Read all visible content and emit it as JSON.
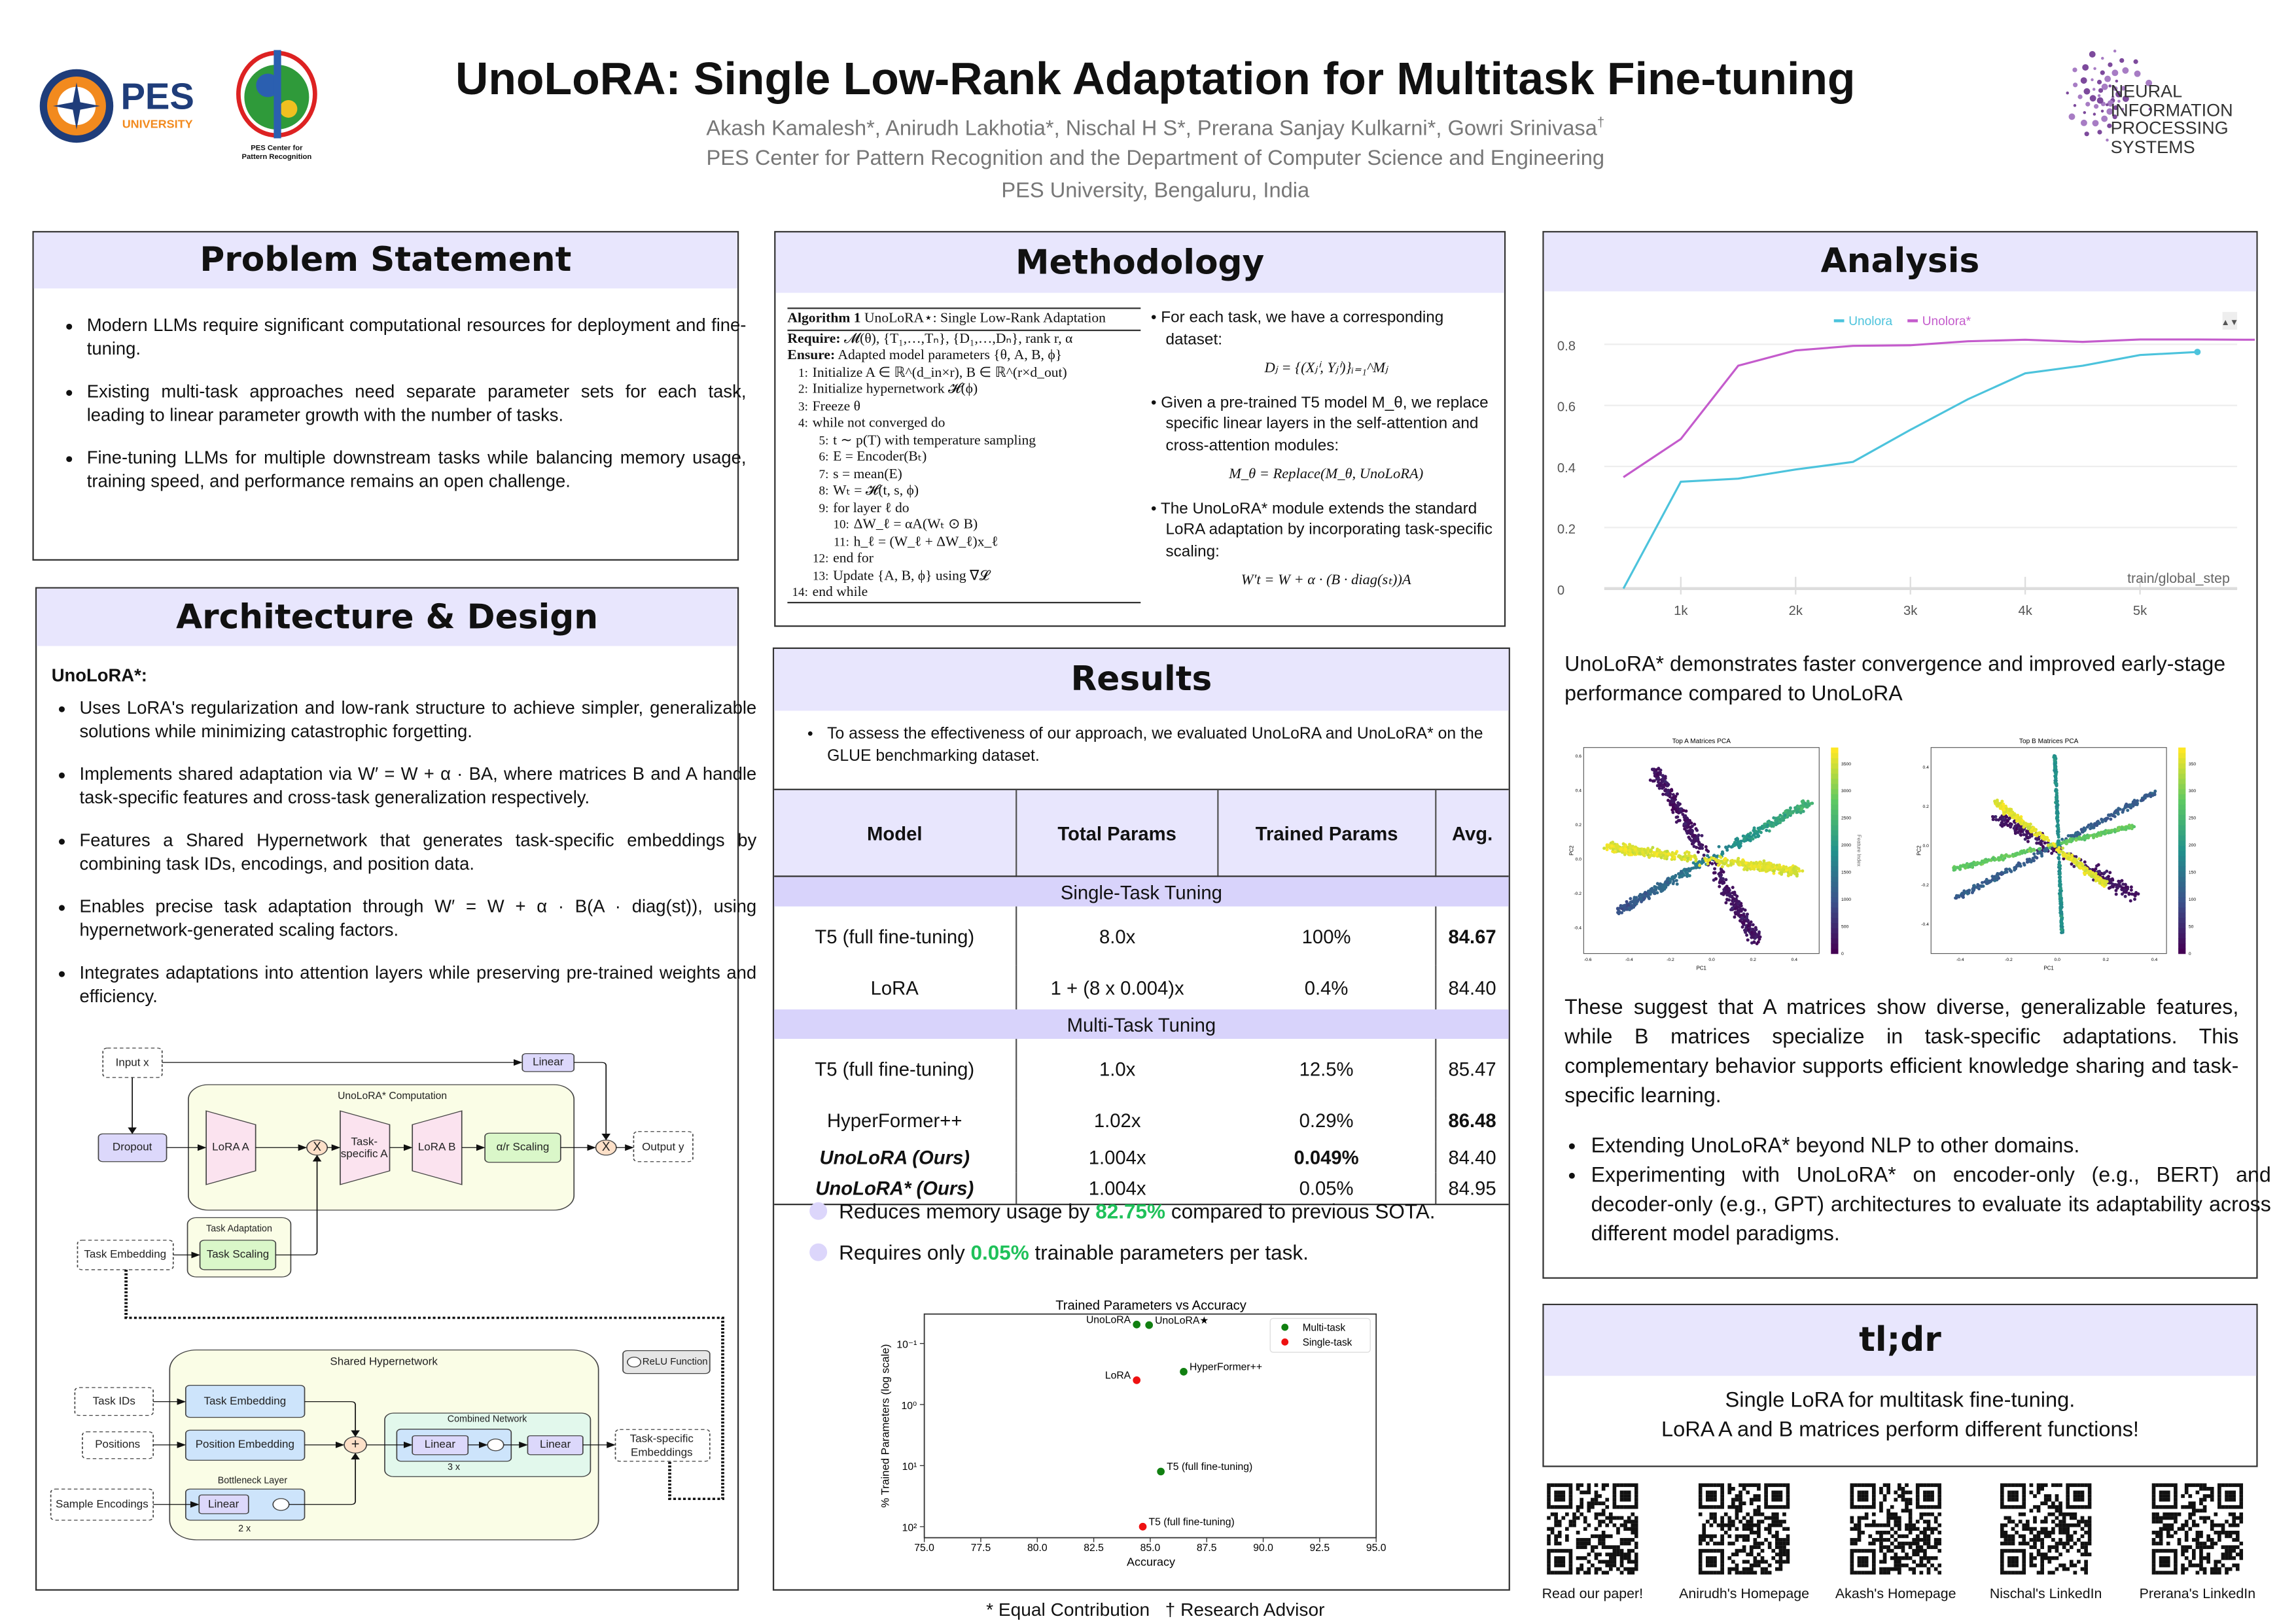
{
  "header": {
    "title": "UnoLoRA: Single Low-Rank Adaptation for Multitask Fine-tuning",
    "authors": "Akash Kamalesh*, Anirudh Lakhotia*, Nischal H S*, Prerana Sanjay Kulkarni*, Gowri Srinivasa",
    "advisor_mark": "†",
    "affiliation": "PES Center for Pattern Recognition and the Department of Computer Science and Engineering",
    "location": "PES University, Bengaluru, India",
    "logo_pes": "PES",
    "logo_pes_sub": "UNIVERSITY",
    "logo_cpr": "PES Center for Pattern Recognition",
    "logo_neurips": [
      "NEURAL",
      "INFORMATION",
      "PROCESSING",
      "SYSTEMS"
    ]
  },
  "problem": {
    "title": "Problem Statement",
    "bullets": [
      "Modern LLMs require significant computational resources for deployment and fine-tuning.",
      "Existing multi-task approaches need separate parameter sets for each task, leading to linear parameter growth with the number of tasks.",
      "Fine-tuning LLMs for multiple downstream tasks while balancing memory usage, training speed, and performance remains an open challenge."
    ]
  },
  "architecture": {
    "title": "Architecture & Design",
    "subtitle": "UnoLoRA*:",
    "bullets": [
      "Uses LoRA's regularization and low-rank structure to achieve simpler, generalizable solutions while minimizing catastrophic forgetting.",
      "Implements shared adaptation via W′ = W + α · BA, where matrices B and A handle task-specific features and cross-task generalization respectively.",
      "Features a Shared Hypernetwork that generates task-specific embeddings by combining task IDs, encodings, and position data.",
      "Enables precise task adaptation through W′ = W + α · B(A · diag(st)), using hypernetwork-generated scaling factors.",
      "Integrates adaptations into attention layers while preserving pre-trained weights and efficiency."
    ],
    "diagram": {
      "input_x": "Input x",
      "linear": "Linear",
      "computation": "UnoLoRA* Computation",
      "dropout": "Dropout",
      "lora_a": "LoRA A",
      "task_specific_1": "Task-",
      "task_specific_2": "specific A",
      "lora_b": "LoRA B",
      "scaling": "α/r Scaling",
      "mult": "X",
      "output_y": "Output y",
      "task_adaptation": "Task Adaptation",
      "task_scaling": "Task Scaling",
      "task_embedding_in": "Task Embedding",
      "shared": "Shared Hypernetwork",
      "relu": "ReLU Function",
      "task_ids": "Task IDs",
      "task_embedding": "Task Embedding",
      "positions": "Positions",
      "position_embedding": "Position Embedding",
      "sample_encodings": "Sample Encodings",
      "bottleneck": "Bottleneck Layer",
      "times2": "2 x",
      "plus": "+",
      "combined": "Combined Network",
      "times3": "3 x",
      "tse1": "Task-specific",
      "tse2": "Embeddings"
    }
  },
  "methodology": {
    "title": "Methodology",
    "algorithm": {
      "label": "Algorithm 1",
      "name": "UnoLoRA⋆: Single Low-Rank Adaptation",
      "require": "Require:",
      "require_text": "𝓜(θ), {T₁,…,Tₙ}, {D₁,…,Dₙ}, rank r, α",
      "ensure": "Ensure:",
      "ensure_text": "Adapted model parameters {θ, A, B, ϕ}",
      "lines": [
        {
          "n": "1:",
          "t": "Initialize A ∈ ℝ^(d_in×r), B ∈ ℝ^(r×d_out)",
          "indent": 0
        },
        {
          "n": "2:",
          "t": "Initialize hypernetwork 𝓗(ϕ)",
          "indent": 0
        },
        {
          "n": "3:",
          "t": "Freeze θ",
          "indent": 0
        },
        {
          "n": "4:",
          "t": "while not converged do",
          "indent": 0
        },
        {
          "n": "5:",
          "t": "t ∼ p(T) with temperature sampling",
          "indent": 1
        },
        {
          "n": "6:",
          "t": "E = Encoder(Bₜ)",
          "indent": 1
        },
        {
          "n": "7:",
          "t": "s = mean(E)",
          "indent": 1
        },
        {
          "n": "8:",
          "t": "Wₜ = 𝓗(t, s, ϕ)",
          "indent": 1
        },
        {
          "n": "9:",
          "t": "for layer ℓ do",
          "indent": 1
        },
        {
          "n": "10:",
          "t": "ΔW_ℓ = αA(Wₜ ⊙ B)",
          "indent": 2
        },
        {
          "n": "11:",
          "t": "h_ℓ = (W_ℓ + ΔW_ℓ)x_ℓ",
          "indent": 2
        },
        {
          "n": "12:",
          "t": "end for",
          "indent": 1
        },
        {
          "n": "13:",
          "t": "Update {A, B, ϕ} using ∇𝓛",
          "indent": 1
        },
        {
          "n": "14:",
          "t": "end while",
          "indent": 0
        }
      ]
    },
    "bullets": [
      {
        "text": "For each task, we have a corresponding dataset:",
        "eq": "Dⱼ = {(Xⱼⁱ, Yⱼⁱ)}ᵢ₌₁^Mⱼ"
      },
      {
        "text": "Given a pre-trained T5 model M_θ, we replace specific linear layers in the self-attention and cross-attention modules:",
        "eq": "M_θ = Replace(M_θ, UnoLoRA)"
      },
      {
        "text": "The UnoLoRA* module extends the standard LoRA adaptation by incorporating task-specific scaling:",
        "eq": "W′t = W + α · (B · diag(sₜ))A"
      }
    ]
  },
  "results": {
    "title": "Results",
    "intro": "To assess the effectiveness of our approach, we evaluated UnoLoRA and UnoLoRA* on the GLUE benchmarking dataset.",
    "columns": [
      "Model",
      "Total Params",
      "Trained Params",
      "Avg."
    ],
    "groups": [
      {
        "label": "Single-Task Tuning",
        "rows": [
          {
            "model": "T5 (full fine-tuning)",
            "total": "8.0x",
            "trained": "100%",
            "avg": "84.67"
          },
          {
            "model": "LoRA",
            "total": "1 + (8 x 0.004)x",
            "trained": "0.4%",
            "avg": "84.40"
          }
        ]
      },
      {
        "label": "Multi-Task Tuning",
        "rows": [
          {
            "model": "T5 (full fine-tuning)",
            "total": "1.0x",
            "trained": "12.5%",
            "avg": "85.47"
          },
          {
            "model": "HyperFormer++",
            "total": "1.02x",
            "trained": "0.29%",
            "avg": "86.48"
          },
          {
            "model": "UnoLoRA (Ours)",
            "total": "1.004x",
            "trained": "0.049%",
            "avg": "84.40"
          },
          {
            "model": "UnoLoRA* (Ours)",
            "total": "1.004x",
            "trained": "0.05%",
            "avg": "84.95"
          }
        ]
      }
    ],
    "highlights": [
      {
        "pre": "Reduces memory usage by ",
        "value": "82.75%",
        "post": " compared to previous SOTA."
      },
      {
        "pre": "Requires only ",
        "value": "0.05%",
        "post": " trainable parameters per task."
      }
    ]
  },
  "analysis": {
    "title": "Analysis",
    "caption": "UnoLoRA* demonstrates faster convergence and improved early-stage performance compared to UnoLoRA",
    "paragraph": "These suggest that A matrices show diverse, generalizable features, while B matrices specialize in task-specific adaptations. This complementary behavior supports efficient knowledge sharing and task-specific learning.",
    "bullets": [
      "Extending UnoLoRA* beyond NLP to other domains.",
      "Experimenting with UnoLoRA* on encoder-only (e.g., BERT) and decoder-only (e.g., GPT) architectures to evaluate its adaptability across different model paradigms."
    ]
  },
  "tldr": {
    "title": "tl;dr",
    "line1": "Single LoRA for multitask fine-tuning.",
    "line2": "LoRA A and B matrices perform different functions!"
  },
  "qr_codes": [
    "Read our paper!",
    "Anirudh's Homepage",
    "Akash's Homepage",
    "Nischal's LinkedIn",
    "Prerana's LinkedIn"
  ],
  "footer": {
    "equal": "*  Equal Contribution",
    "advisor": "†  Research Advisor"
  },
  "colors": {
    "band": "#e8e6fd",
    "group_band": "#d8d3fb",
    "unolora": "#4cc3dc",
    "unolora_star": "#c45bcc",
    "green": "#1fc15a",
    "multi": "#118011",
    "single": "#ee1111"
  },
  "chart_data": [
    {
      "type": "line",
      "title": "",
      "xlabel": "train/global_step",
      "ylabel": "",
      "x_ticks": [
        "1k",
        "2k",
        "3k",
        "4k",
        "5k"
      ],
      "y_ticks": [
        "0",
        "0.2",
        "0.4",
        "0.6",
        "0.8"
      ],
      "ylim": [
        0,
        0.8
      ],
      "legend": "top-center",
      "series": [
        {
          "name": "Unolora",
          "color": "#4cc3dc",
          "x": [
            500,
            1000,
            1500,
            2000,
            2500,
            3000,
            3500,
            4000,
            4500,
            5000,
            5500
          ],
          "y": [
            0.0,
            0.35,
            0.36,
            0.39,
            0.415,
            0.52,
            0.62,
            0.705,
            0.73,
            0.765,
            0.775
          ]
        },
        {
          "name": "Unolora*",
          "color": "#c45bcc",
          "x": [
            500,
            1000,
            1500,
            2000,
            2500,
            3000,
            3500,
            4000,
            4500,
            5000,
            5500,
            6000
          ],
          "y": [
            0.365,
            0.49,
            0.73,
            0.78,
            0.795,
            0.797,
            0.81,
            0.815,
            0.808,
            0.816,
            0.816,
            0.815
          ]
        }
      ]
    },
    {
      "type": "scatter",
      "title": "Trained Parameters vs Accuracy",
      "xlabel": "Accuracy",
      "ylabel": "% Trained Parameters (log scale)",
      "x_ticks": [
        "75.0",
        "77.5",
        "80.0",
        "82.5",
        "85.0",
        "87.5",
        "90.0",
        "92.5",
        "95.0"
      ],
      "xlim": [
        75,
        95
      ],
      "y_ticks": [
        "10⁻¹",
        "10⁰",
        "10¹",
        "10²"
      ],
      "y_scale": "log-inverted",
      "legend": "top-right",
      "legend_entries": [
        {
          "name": "Multi-task",
          "color": "#118011"
        },
        {
          "name": "Single-task",
          "color": "#ee1111"
        }
      ],
      "points": [
        {
          "label": "UnoLoRA",
          "x": 84.4,
          "y": 0.049,
          "group": "Multi-task",
          "label_side": "left"
        },
        {
          "label": "UnoLoRA★",
          "x": 84.95,
          "y": 0.05,
          "group": "Multi-task",
          "label_side": "right"
        },
        {
          "label": "HyperFormer++",
          "x": 86.48,
          "y": 0.29,
          "group": "Multi-task",
          "label_side": "right"
        },
        {
          "label": "LoRA",
          "x": 84.4,
          "y": 0.4,
          "group": "Single-task",
          "label_side": "left"
        },
        {
          "label": "T5 (full fine-tuning)",
          "x": 85.47,
          "y": 12.5,
          "group": "Multi-task",
          "label_side": "right"
        },
        {
          "label": "T5 (full fine-tuning)",
          "x": 84.67,
          "y": 100,
          "group": "Single-task",
          "label_side": "right"
        }
      ]
    },
    {
      "type": "scatter",
      "title": "Top A Matrices PCA",
      "xlabel": "PC1",
      "ylabel": "PC2",
      "colorbar_label": "Feature Index",
      "x_ticks": [
        "-0.6",
        "-0.4",
        "-0.2",
        "0.0",
        "0.2",
        "0.4"
      ],
      "y_ticks": [
        "-0.4",
        "-0.2",
        "0.0",
        "0.2",
        "0.4",
        "0.6"
      ],
      "colorbar_ticks": [
        "0",
        "500",
        "1000",
        "1500",
        "2000",
        "2500",
        "3000",
        "3500"
      ]
    },
    {
      "type": "scatter",
      "title": "Top B Matrices PCA",
      "xlabel": "PC1",
      "ylabel": "PC2",
      "x_ticks": [
        "-0.4",
        "-0.2",
        "0.0",
        "0.2",
        "0.4"
      ],
      "y_ticks": [
        "-0.4",
        "-0.2",
        "0.0",
        "0.2",
        "0.4"
      ],
      "colorbar_ticks": [
        "0",
        "50",
        "100",
        "150",
        "200",
        "250",
        "300",
        "350"
      ]
    }
  ]
}
